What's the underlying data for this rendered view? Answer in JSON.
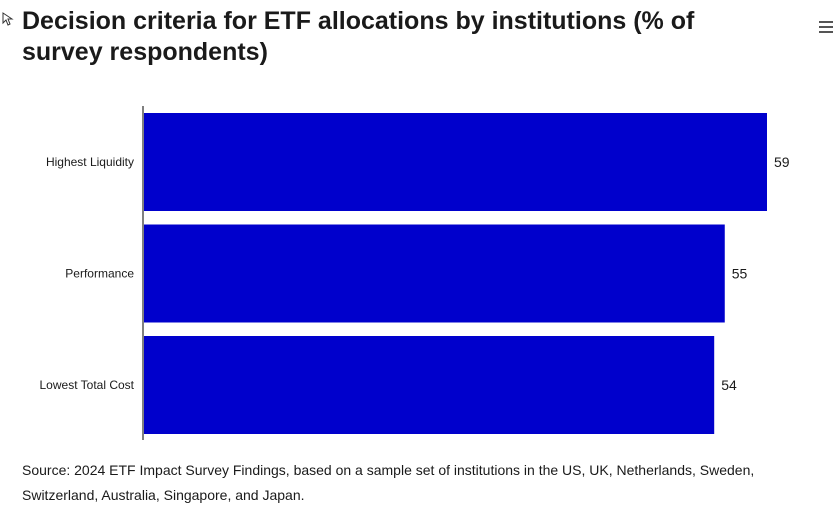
{
  "chart_data": {
    "type": "bar",
    "orientation": "horizontal",
    "title": "Decision criteria for ETF allocations by institutions (% of survey respondents)",
    "categories": [
      "Highest Liquidity",
      "Performance",
      "Lowest Total Cost"
    ],
    "values": [
      59,
      55,
      54
    ],
    "xlabel": "",
    "ylabel": "",
    "xlim": [
      0,
      59
    ],
    "grid": false,
    "legend": "none",
    "bar_color": "#0000cc",
    "data_labels": [
      "59",
      "55",
      "54"
    ]
  },
  "source": "Source: 2024 ETF Impact Survey Findings, based on a sample set of institutions in the US, UK, Netherlands, Sweden, Switzerland, Australia, Singapore, and Japan.",
  "icons": {
    "menu": "menu-icon",
    "pointer": "pointer-icon"
  }
}
